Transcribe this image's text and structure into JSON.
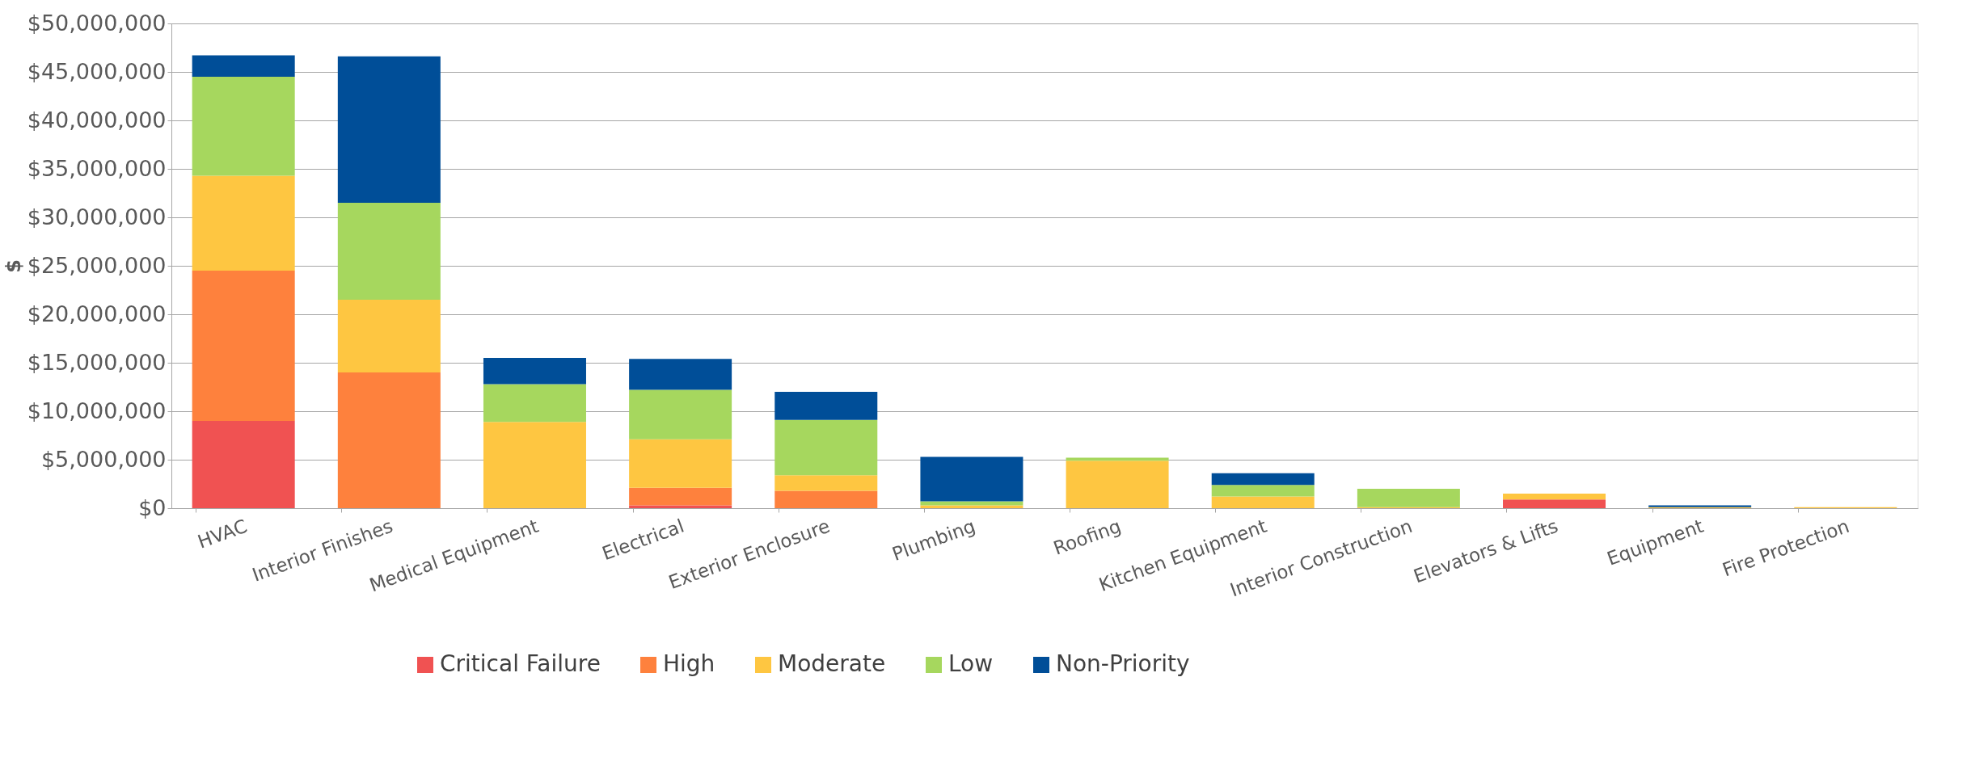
{
  "chart_data": {
    "type": "bar",
    "stacked": true,
    "ylabel": "$",
    "categories": [
      "HVAC",
      "Interior Finishes",
      "Medical Equipment",
      "Electrical",
      "Exterior Enclosure",
      "Plumbing",
      "Roofing",
      "Kitchen Equipment",
      "Interior Construction",
      "Elevators & Lifts",
      "Equipment",
      "Fire Protection"
    ],
    "series": [
      {
        "name": "Critical Failure",
        "color": "#f05252",
        "values": [
          9000000,
          0,
          0,
          300000,
          0,
          0,
          0,
          0,
          0,
          900000,
          0,
          0
        ]
      },
      {
        "name": "High",
        "color": "#fe813d",
        "values": [
          15500000,
          14000000,
          0,
          1800000,
          1800000,
          0,
          0,
          0,
          0,
          0,
          0,
          0
        ]
      },
      {
        "name": "Moderate",
        "color": "#fec641",
        "values": [
          9800000,
          7500000,
          8900000,
          5000000,
          1600000,
          300000,
          4900000,
          1200000,
          100000,
          600000,
          100000,
          100000
        ]
      },
      {
        "name": "Low",
        "color": "#a6d75e",
        "values": [
          10200000,
          10000000,
          3900000,
          5100000,
          5700000,
          400000,
          300000,
          1200000,
          1900000,
          0,
          0,
          0
        ]
      },
      {
        "name": "Non-Priority",
        "color": "#004e98",
        "values": [
          2200000,
          15100000,
          2700000,
          3200000,
          2900000,
          4600000,
          0,
          1200000,
          0,
          0,
          200000,
          0
        ]
      }
    ],
    "ylim": [
      0,
      50000000
    ],
    "yticks": [
      {
        "value": 0,
        "label": "$0"
      },
      {
        "value": 5000000,
        "label": "$5,000,000"
      },
      {
        "value": 10000000,
        "label": "$10,000,000"
      },
      {
        "value": 15000000,
        "label": "$15,000,000"
      },
      {
        "value": 20000000,
        "label": "$20,000,000"
      },
      {
        "value": 25000000,
        "label": "$25,000,000"
      },
      {
        "value": 30000000,
        "label": "$30,000,000"
      },
      {
        "value": 35000000,
        "label": "$35,000,000"
      },
      {
        "value": 40000000,
        "label": "$40,000,000"
      },
      {
        "value": 45000000,
        "label": "$45,000,000"
      },
      {
        "value": 50000000,
        "label": "$50,000,000"
      }
    ],
    "grid": "y",
    "legend": "bottom"
  }
}
